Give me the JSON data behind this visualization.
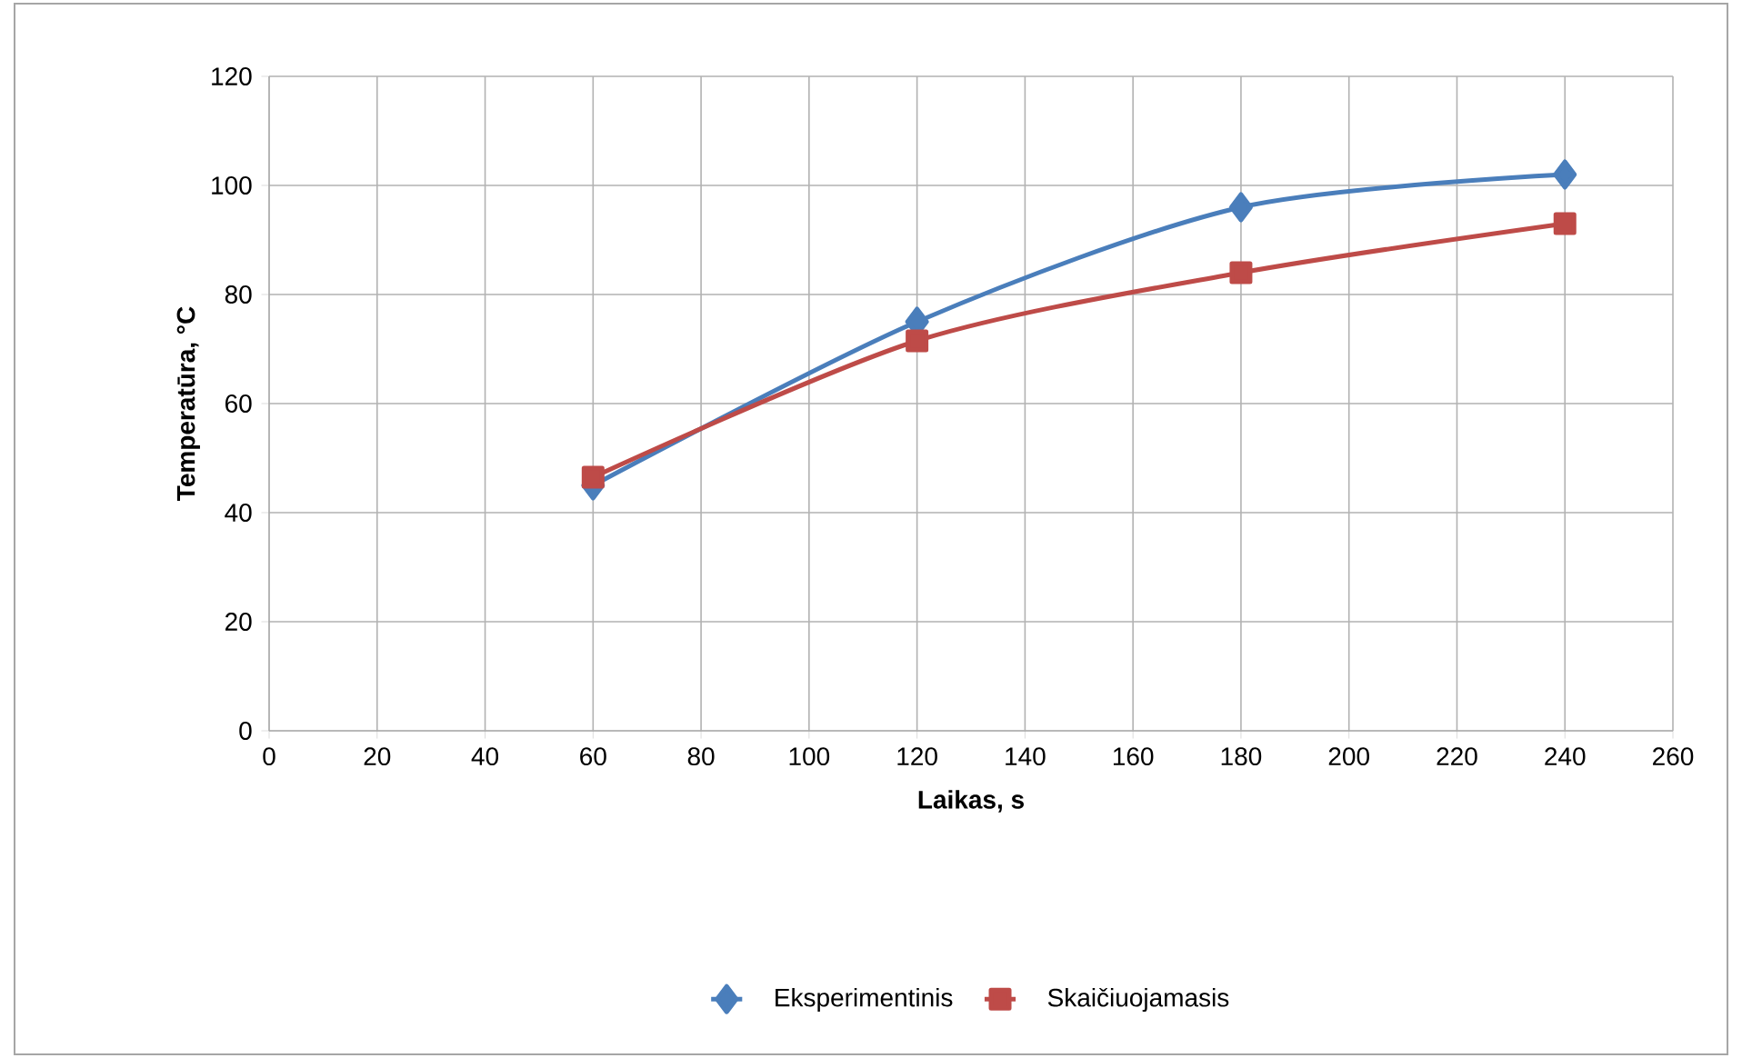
{
  "chart_data": {
    "type": "line",
    "xlabel": "Laikas, s",
    "ylabel": "Temperatūra, °C",
    "x": [
      60,
      120,
      180,
      240
    ],
    "series": [
      {
        "name": "Eksperimentinis",
        "color": "#4a7ebb",
        "marker": "diamond",
        "values": [
          45,
          75,
          96,
          102
        ]
      },
      {
        "name": "Skaičiuojamasis",
        "color": "#be4b48",
        "marker": "square",
        "values": [
          46.5,
          71.5,
          84,
          93
        ]
      }
    ],
    "xlim": [
      0,
      260
    ],
    "xticks": [
      0,
      20,
      40,
      60,
      80,
      100,
      120,
      140,
      160,
      180,
      200,
      220,
      240,
      260
    ],
    "ylim": [
      0,
      120
    ],
    "yticks": [
      0,
      20,
      40,
      60,
      80,
      100,
      120
    ],
    "grid": true,
    "legend": "bottom",
    "line_style": "solid"
  }
}
